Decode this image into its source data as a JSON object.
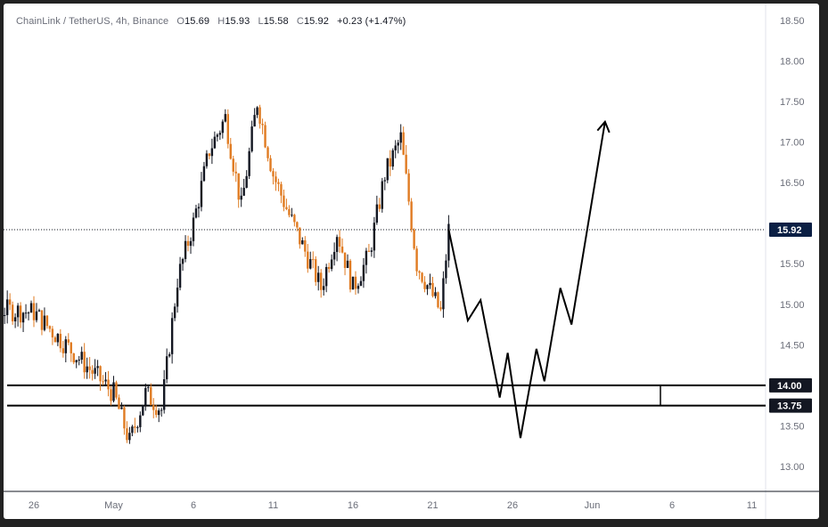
{
  "legend": {
    "symbol": "ChainLink / TetherUS, 4h, Binance",
    "o_label": "O",
    "o_value": "15.69",
    "h_label": "H",
    "h_value": "15.93",
    "l_label": "L",
    "l_value": "15.58",
    "c_label": "C",
    "c_value": "15.92",
    "change": "+0.23 (+1.47%)"
  },
  "chart_data": {
    "type": "candlestick",
    "x_tick_labels": [
      "26",
      "May",
      "6",
      "11",
      "16",
      "21",
      "26",
      "Jun",
      "6",
      "11"
    ],
    "y_tick_labels": [
      "13.00",
      "13.50",
      "14.50",
      "15.00",
      "15.50",
      "16.50",
      "17.00",
      "17.50",
      "18.00",
      "18.50"
    ],
    "y_ticks": [
      13.0,
      13.5,
      14.5,
      15.0,
      15.5,
      16.5,
      17.0,
      17.5,
      18.0,
      18.5
    ],
    "ylim": [
      12.78,
      18.62
    ],
    "last_price": 15.92,
    "last_price_label": "15.92",
    "levels": [
      {
        "value": 14.0,
        "label": "14.00"
      },
      {
        "value": 13.75,
        "label": "13.75"
      }
    ],
    "colors": {
      "up": "#131722",
      "down": "#e07b22",
      "line": "#000000",
      "tag": "#131722",
      "last_tag": "#0b1f44"
    },
    "price_path_key_points": [
      {
        "day": -6,
        "close": 15.0
      },
      {
        "day": 0,
        "close": 14.9
      },
      {
        "day": 5,
        "close": 13.9
      },
      {
        "day": 6,
        "close": 13.3
      },
      {
        "day": 7,
        "close": 13.9
      },
      {
        "day": 8,
        "close": 13.7
      },
      {
        "day": 9,
        "close": 15.3
      },
      {
        "day": 10,
        "close": 16.0
      },
      {
        "day": 11,
        "close": 16.9
      },
      {
        "day": 12,
        "close": 17.3
      },
      {
        "day": 13,
        "close": 16.2
      },
      {
        "day": 14,
        "close": 17.5
      },
      {
        "day": 15,
        "close": 16.6
      },
      {
        "day": 16,
        "close": 16.1
      },
      {
        "day": 18,
        "close": 15.2
      },
      {
        "day": 19,
        "close": 15.9
      },
      {
        "day": 20,
        "close": 15.2
      },
      {
        "day": 21,
        "close": 15.6
      },
      {
        "day": 22,
        "close": 16.6
      },
      {
        "day": 23,
        "close": 17.05
      },
      {
        "day": 24,
        "close": 15.5
      },
      {
        "day": 25,
        "close": 15.1
      },
      {
        "day": 25.5,
        "close": 14.9
      },
      {
        "day": 26,
        "close": 15.92
      }
    ],
    "projection": [
      {
        "day": 26,
        "price": 15.92
      },
      {
        "day": 27.2,
        "price": 14.8
      },
      {
        "day": 28,
        "price": 15.05
      },
      {
        "day": 29.2,
        "price": 13.85
      },
      {
        "day": 29.7,
        "price": 14.4
      },
      {
        "day": 30.5,
        "price": 13.35
      },
      {
        "day": 31.5,
        "price": 14.45
      },
      {
        "day": 32,
        "price": 14.05
      },
      {
        "day": 33,
        "price": 15.2
      },
      {
        "day": 33.7,
        "price": 14.75
      },
      {
        "day": 35.8,
        "price": 17.25
      }
    ]
  }
}
